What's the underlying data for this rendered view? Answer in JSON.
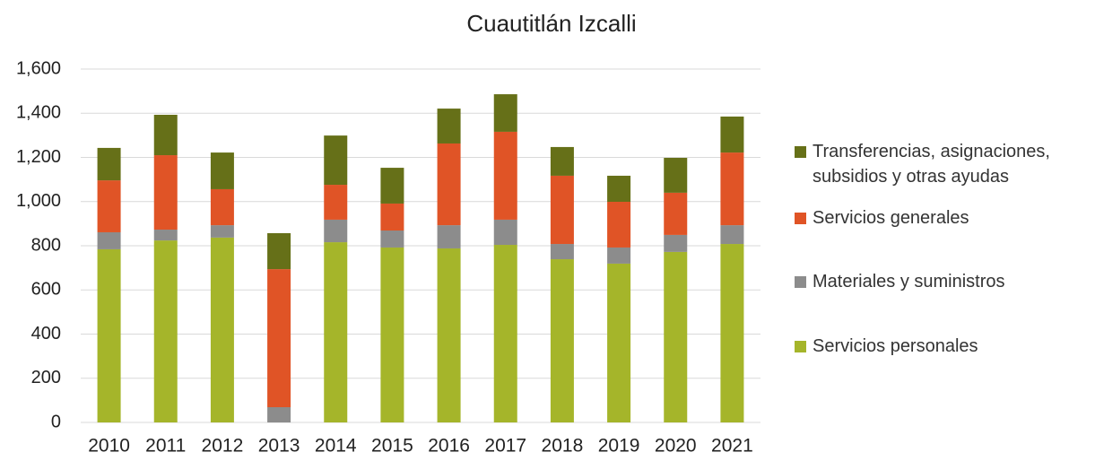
{
  "chart_data": {
    "type": "stacked_bar",
    "title": "Cuautitlán Izcalli",
    "categories": [
      "2010",
      "2011",
      "2012",
      "2013",
      "2014",
      "2015",
      "2016",
      "2017",
      "2018",
      "2019",
      "2020",
      "2021"
    ],
    "series": [
      {
        "name": "Servicios personales",
        "color": "#a5b52a",
        "values": [
          784,
          824,
          837,
          0,
          816,
          792,
          788,
          804,
          739,
          719,
          772,
          808
        ]
      },
      {
        "name": "Materiales y suministros",
        "color": "#8c8c8c",
        "values": [
          77,
          49,
          56,
          69,
          102,
          77,
          105,
          114,
          69,
          73,
          77,
          85
        ]
      },
      {
        "name": "Servicios generales",
        "color": "#e05426",
        "values": [
          235,
          337,
          163,
          625,
          158,
          122,
          370,
          398,
          309,
          207,
          191,
          329
        ]
      },
      {
        "name": "Transferencias, asignaciones, subsidios y otras ayudas",
        "color": "#667018",
        "values": [
          147,
          183,
          166,
          163,
          223,
          162,
          158,
          170,
          130,
          118,
          158,
          163
        ]
      }
    ],
    "ylim": [
      0,
      1600
    ],
    "yticks": [
      0,
      200,
      400,
      600,
      800,
      {
        "value": 1000,
        "label": "1,000"
      },
      {
        "value": 1200,
        "label": "1,200"
      },
      {
        "value": 1400,
        "label": "1,400"
      },
      {
        "value": 1600,
        "label": "1,600"
      }
    ],
    "grid": true,
    "legend": "right"
  }
}
